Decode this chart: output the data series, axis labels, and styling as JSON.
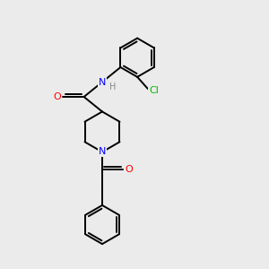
{
  "background_color": "#ebebeb",
  "bond_color": "#000000",
  "atom_colors": {
    "O": "#ff0000",
    "N": "#0000ff",
    "Cl": "#00bb00",
    "H": "#888888",
    "C": "#000000"
  },
  "figsize": [
    3.0,
    3.0
  ],
  "dpi": 100
}
